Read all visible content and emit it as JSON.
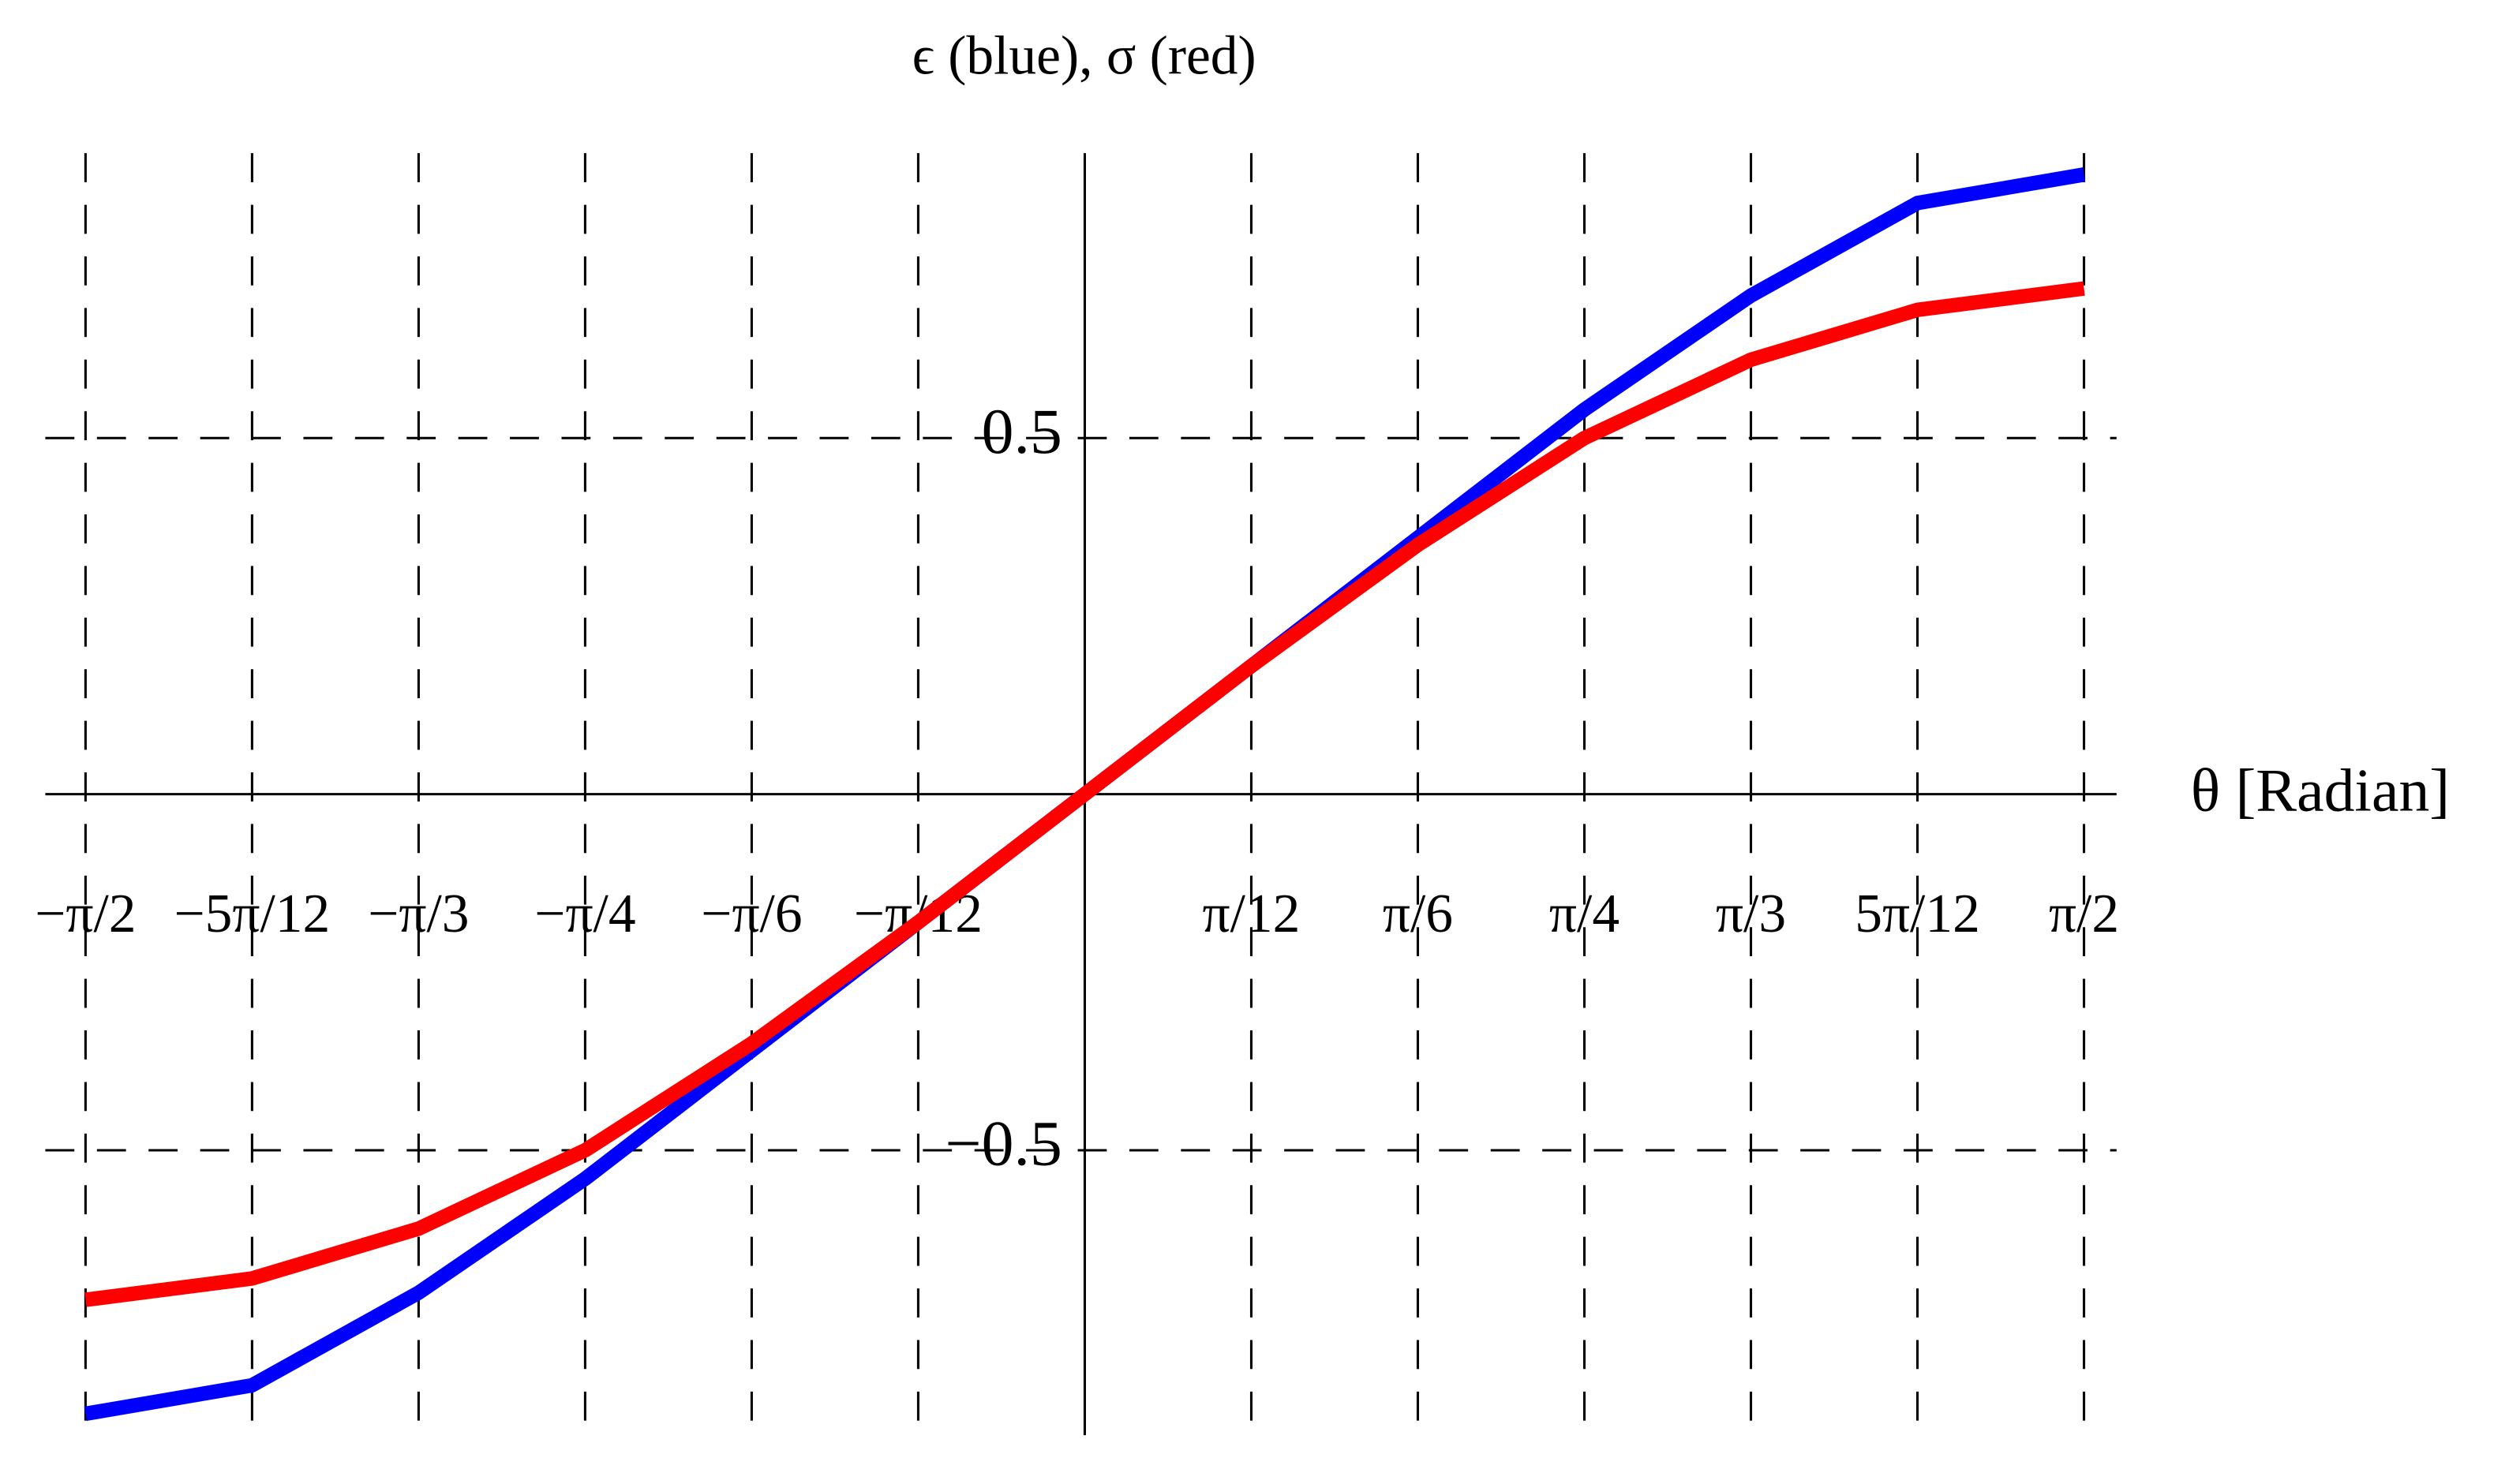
{
  "chart_data": {
    "type": "line",
    "title": "ϵ (blue), σ (red)",
    "x_label": "θ [Radian]",
    "x": [
      -1.5708,
      -1.309,
      -1.0472,
      -0.7854,
      -0.5236,
      -0.2618,
      0,
      0.2618,
      0.5236,
      0.7854,
      1.0472,
      1.309,
      1.5708
    ],
    "series": [
      {
        "name": "ϵ",
        "color": "#0000ff",
        "values": [
          -0.87,
          -0.83,
          -0.7,
          -0.54,
          -0.36,
          -0.18,
          0,
          0.18,
          0.36,
          0.54,
          0.7,
          0.83,
          0.87
        ]
      },
      {
        "name": "σ",
        "color": "#ff0000",
        "values": [
          -0.71,
          -0.68,
          -0.61,
          -0.5,
          -0.35,
          -0.18,
          0,
          0.18,
          0.35,
          0.5,
          0.61,
          0.68,
          0.71
        ]
      }
    ],
    "xlim": [
      -1.634,
      1.622
    ],
    "ylim": [
      -0.9,
      0.9
    ],
    "xticks": [
      {
        "value": -1.5708,
        "label": "−π/2"
      },
      {
        "value": -1.309,
        "label": "−5π/12"
      },
      {
        "value": -1.0472,
        "label": "−π/3"
      },
      {
        "value": -0.7854,
        "label": "−π/4"
      },
      {
        "value": -0.5236,
        "label": "−π/6"
      },
      {
        "value": -0.2618,
        "label": "−π/12"
      },
      {
        "value": 0.2618,
        "label": "π/12"
      },
      {
        "value": 0.5236,
        "label": "π/6"
      },
      {
        "value": 0.7854,
        "label": "π/4"
      },
      {
        "value": 1.0472,
        "label": "π/3"
      },
      {
        "value": 1.309,
        "label": "5π/12"
      },
      {
        "value": 1.5708,
        "label": "π/2"
      }
    ],
    "yticks": [
      {
        "value": -0.5,
        "label": "−0.5"
      },
      0.5
    ],
    "grid": true
  }
}
